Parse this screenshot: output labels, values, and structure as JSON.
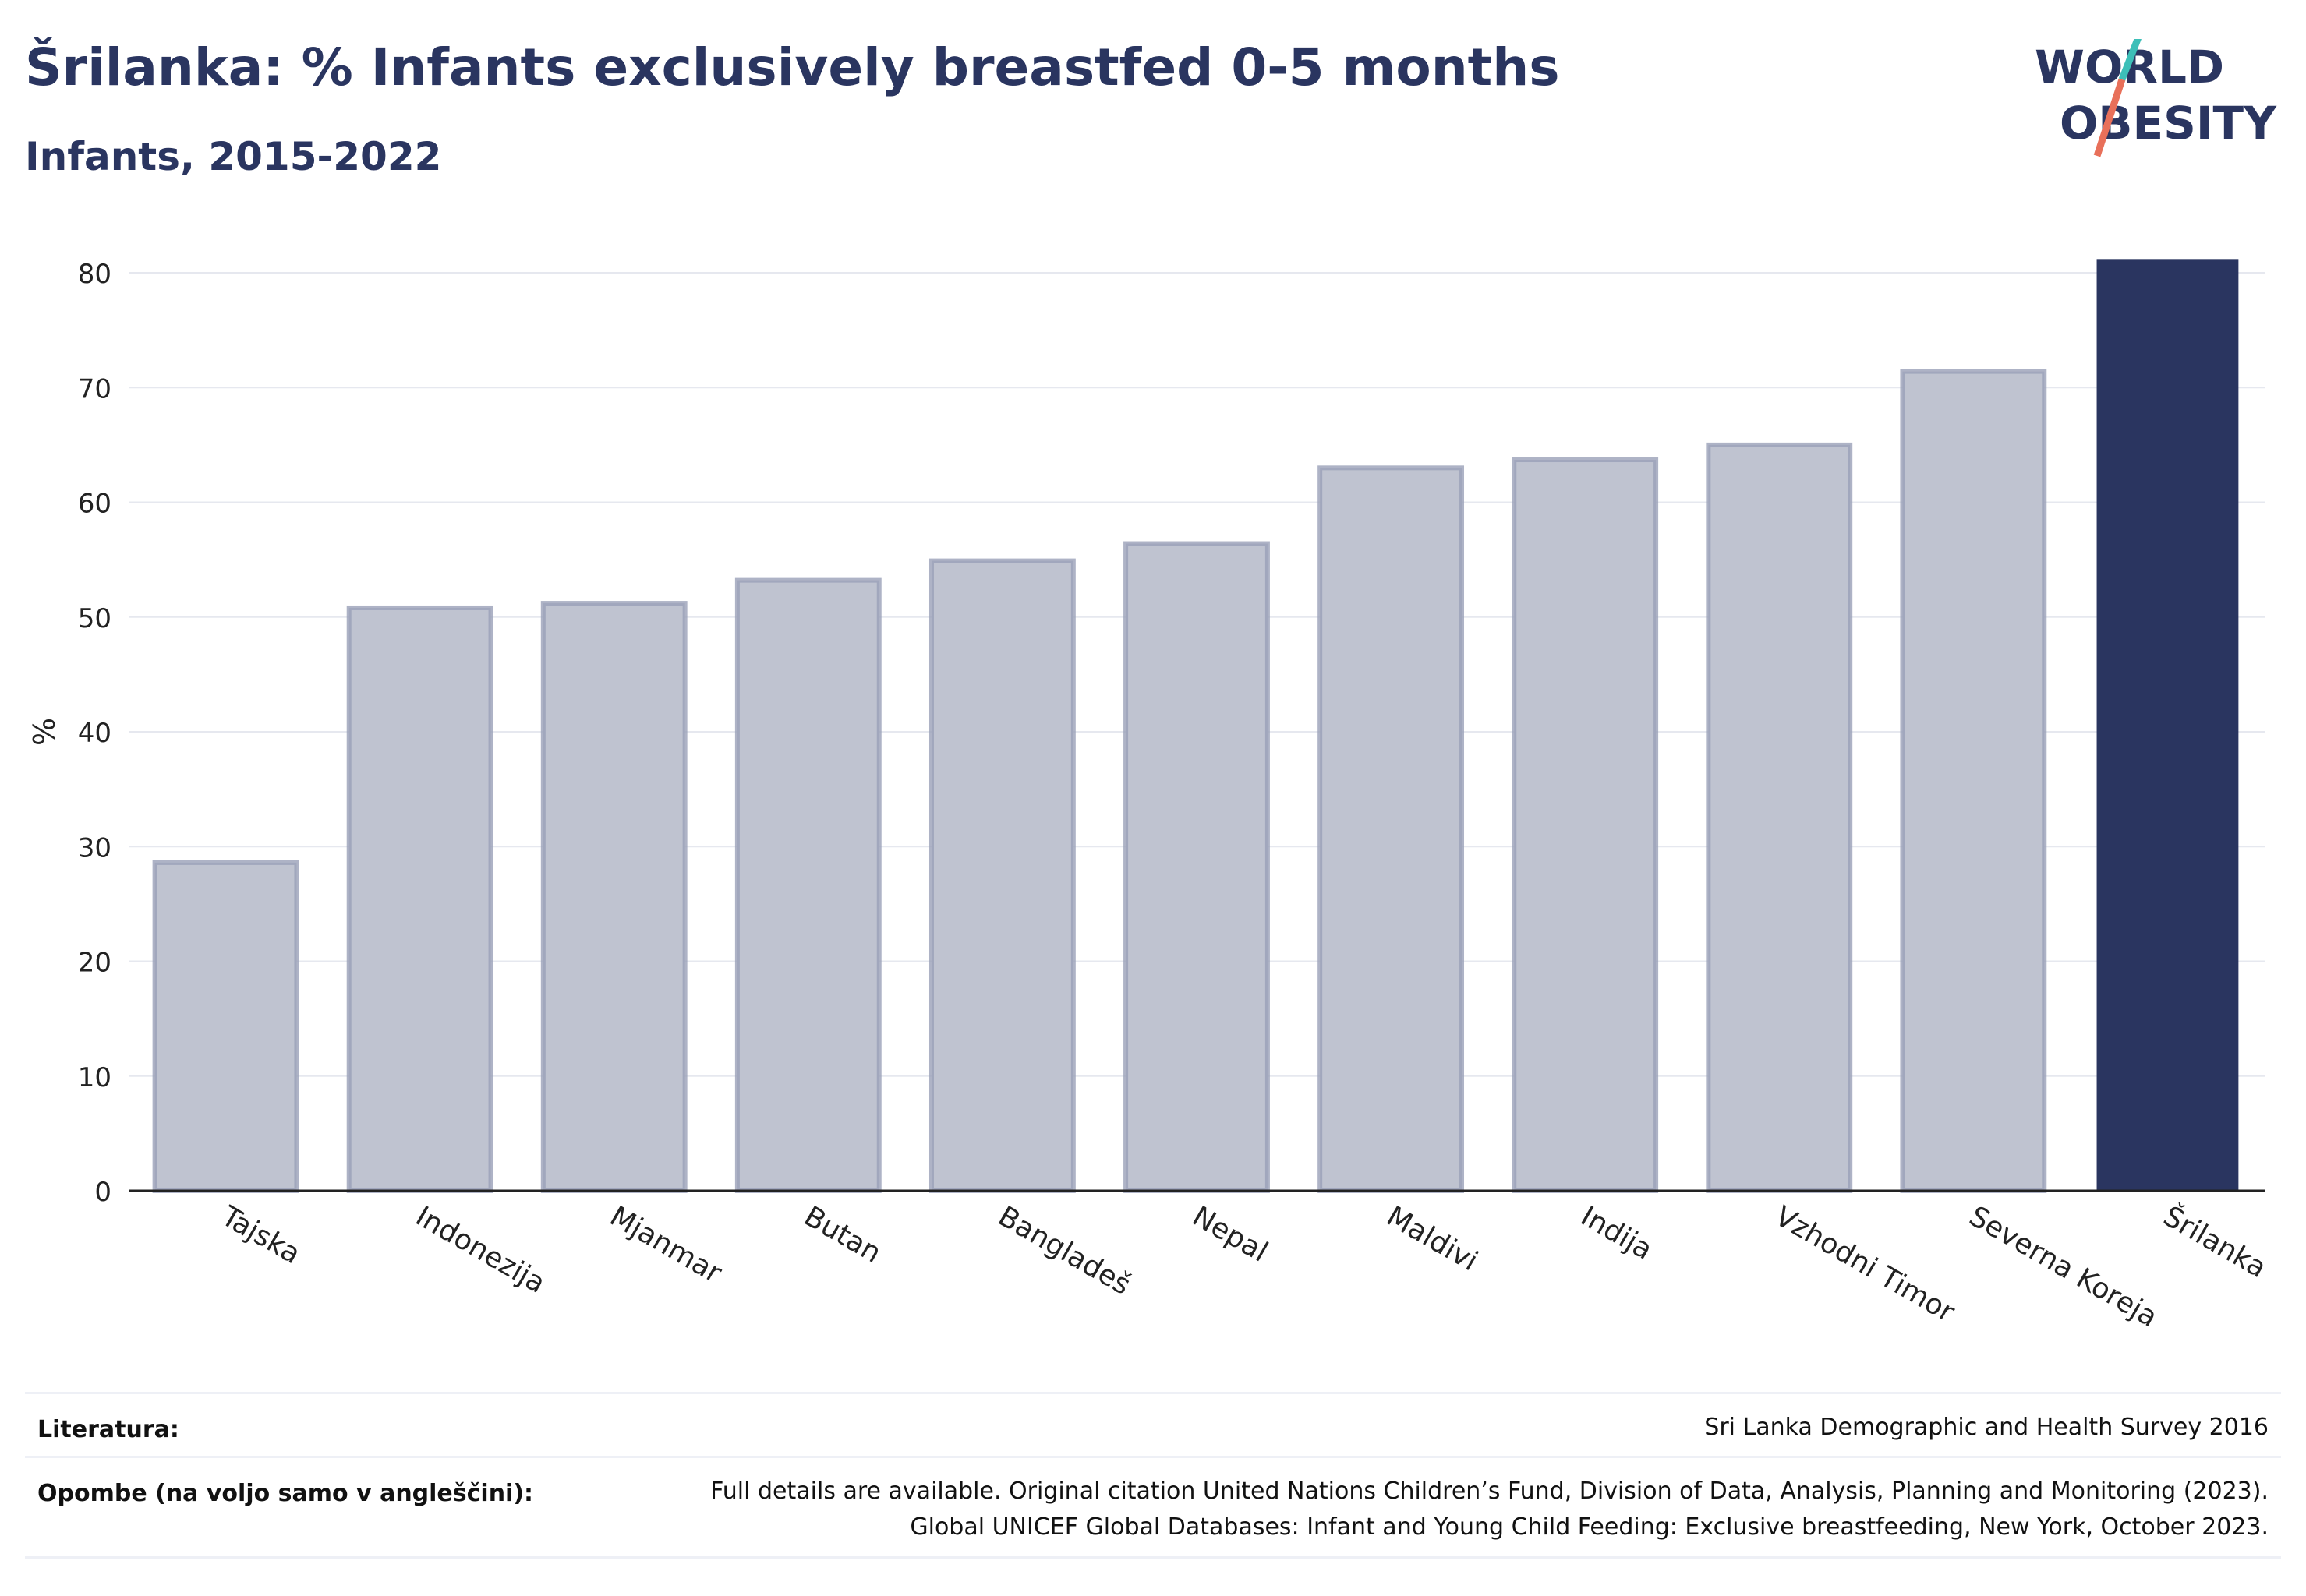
{
  "header": {
    "title": "Šrilanka: % Infants exclusively breastfed 0-5 months",
    "subtitle": "Infants, 2015-2022"
  },
  "logo": {
    "line1": "WORLD",
    "line2": "OBESITY"
  },
  "colors": {
    "highlight": "#2a3560",
    "bar_fill": "#bfc3d0",
    "bar_stroke": "#9aa0b8",
    "text": "#2a3560",
    "logo_teal": "#3dbfb8",
    "logo_coral": "#e8705a"
  },
  "chart_data": {
    "type": "bar",
    "title": "Šrilanka: % Infants exclusively breastfed 0-5 months",
    "subtitle": "Infants, 2015-2022",
    "xlabel": "",
    "ylabel": "%",
    "ylim": [
      0,
      80
    ],
    "yticks": [
      0,
      10,
      20,
      30,
      40,
      50,
      60,
      70,
      80
    ],
    "grid": true,
    "categories": [
      "Tajska",
      "Indonezija",
      "Mjanmar",
      "Butan",
      "Bangladeš",
      "Nepal",
      "Maldivi",
      "Indija",
      "Vzhodni Timor",
      "Severna Koreja",
      "Šrilanka"
    ],
    "values": [
      28.6,
      50.8,
      51.2,
      53.2,
      54.9,
      56.4,
      63.0,
      63.7,
      65.0,
      71.4,
      81.2
    ],
    "highlight": "Šrilanka"
  },
  "footer": {
    "sources_label": "Literatura:",
    "sources_text": "Sri Lanka Demographic and Health Survey 2016",
    "notes_label": "Opombe (na voljo samo v angleščini):",
    "notes_line1": "Full details are available. Original citation United Nations Children’s Fund, Division of Data, Analysis, Planning and Monitoring (2023).",
    "notes_line2": "Global UNICEF Global Databases: Infant and Young Child Feeding: Exclusive breastfeeding, New York, October 2023."
  }
}
